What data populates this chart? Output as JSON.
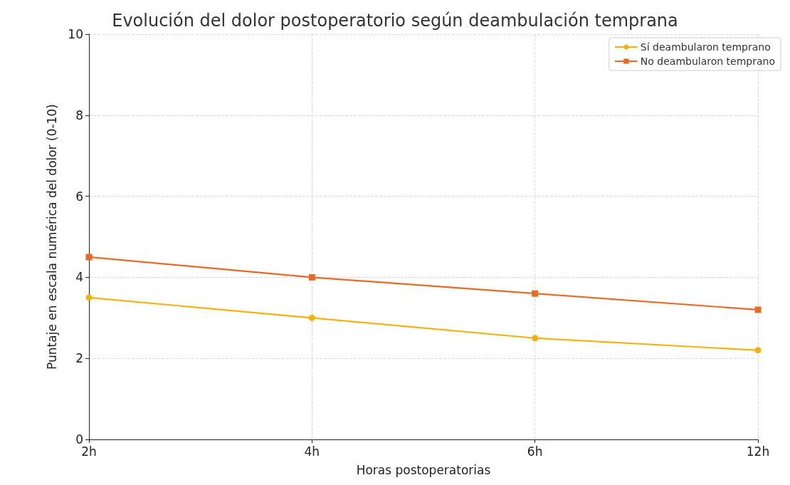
{
  "chart_data": {
    "type": "line",
    "title": "Evolución del dolor postoperatorio según deambulación temprana",
    "xlabel": "Horas postoperatorias",
    "ylabel": "Puntaje en escala numérica del dolor (0-10)",
    "categories": [
      "2h",
      "4h",
      "6h",
      "12h"
    ],
    "series": [
      {
        "name": "Sí deambularon temprano",
        "color": "#f5b20d",
        "marker": "circle",
        "values": [
          3.5,
          3.0,
          2.5,
          2.2
        ]
      },
      {
        "name": "No deambularon temprano",
        "color": "#eb6a23",
        "marker": "square",
        "values": [
          4.5,
          4.0,
          3.6,
          3.2
        ]
      }
    ],
    "ylim": [
      0,
      10
    ],
    "yticks": [
      0,
      2,
      4,
      6,
      8,
      10
    ],
    "grid": true,
    "legend": "top right",
    "line_style": "solid"
  }
}
